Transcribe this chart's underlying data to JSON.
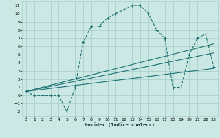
{
  "xlabel": "Humidex (Indice chaleur)",
  "background_color": "#cce8e4",
  "grid_color": "#aacfcc",
  "line_color": "#1a7070",
  "xlim": [
    -0.5,
    23.5
  ],
  "ylim": [
    -2.5,
    11.5
  ],
  "xticks": [
    0,
    1,
    2,
    3,
    4,
    5,
    6,
    7,
    8,
    9,
    10,
    11,
    12,
    13,
    14,
    15,
    16,
    17,
    18,
    19,
    20,
    21,
    22,
    23
  ],
  "yticks": [
    -2,
    -1,
    0,
    1,
    2,
    3,
    4,
    5,
    6,
    7,
    8,
    9,
    10,
    11
  ],
  "main_curve": {
    "x": [
      0,
      1,
      2,
      3,
      4,
      5,
      6,
      7,
      8,
      9,
      10,
      11,
      12,
      13,
      14,
      15,
      16,
      17,
      18,
      19,
      20,
      21,
      22,
      23
    ],
    "y": [
      0.5,
      0,
      0,
      0,
      0,
      -2,
      1,
      6.5,
      8.5,
      8.5,
      9.5,
      10,
      10.5,
      11,
      11,
      10,
      8,
      7,
      1,
      1,
      5,
      7,
      7.5,
      3.5
    ]
  },
  "line1": {
    "x": [
      0,
      23
    ],
    "y": [
      0.5,
      3.3
    ]
  },
  "line2": {
    "x": [
      0,
      23
    ],
    "y": [
      0.5,
      5.2
    ]
  },
  "line3": {
    "x": [
      0,
      23
    ],
    "y": [
      0.5,
      6.3
    ]
  }
}
